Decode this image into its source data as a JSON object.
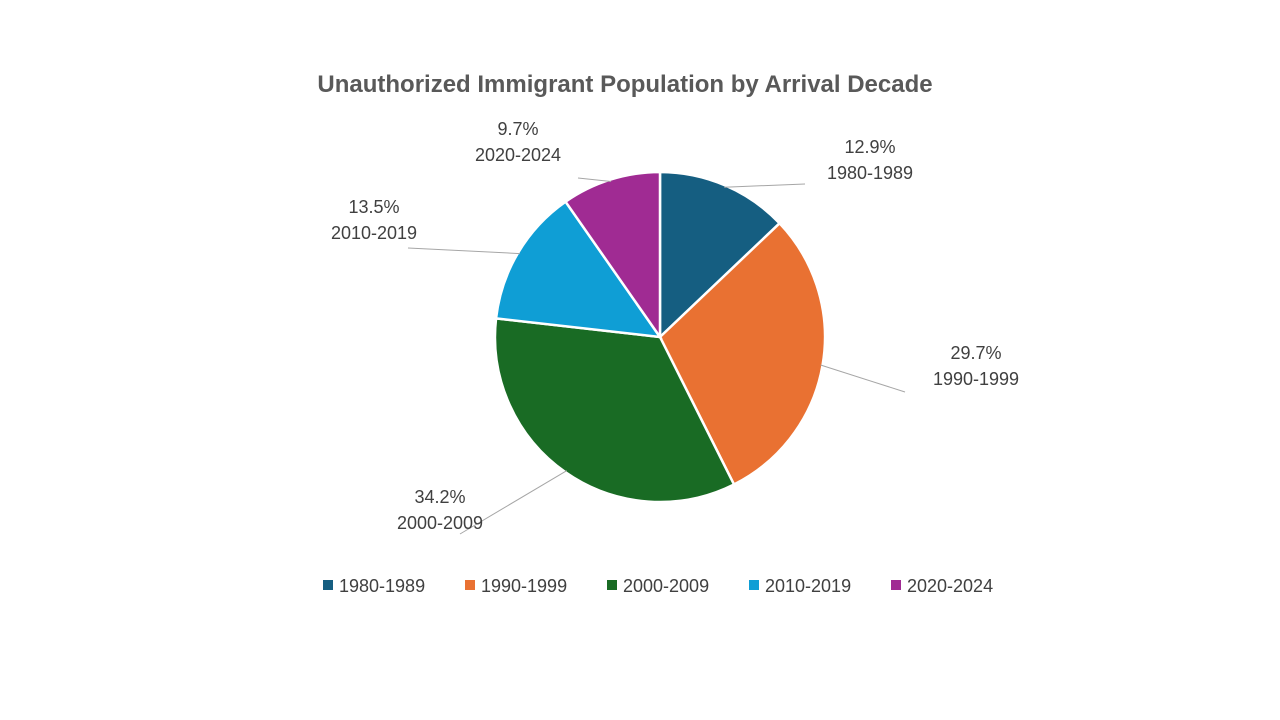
{
  "chart_data": {
    "type": "pie",
    "title": "Unauthorized Immigrant Population by Arrival Decade",
    "categories": [
      "1980-1989",
      "1990-1999",
      "2000-2009",
      "2010-2019",
      "2020-2024"
    ],
    "values": [
      12.9,
      29.7,
      34.2,
      13.5,
      9.7
    ],
    "value_labels": [
      "12.9%",
      "29.7%",
      "34.2%",
      "13.5%",
      "9.7%"
    ],
    "colors": [
      "#155E81",
      "#E97132",
      "#196B24",
      "#0F9ED5",
      "#A02B93"
    ],
    "legend_position": "bottom",
    "data_labels": "outside with leader lines, percentage and category name"
  }
}
